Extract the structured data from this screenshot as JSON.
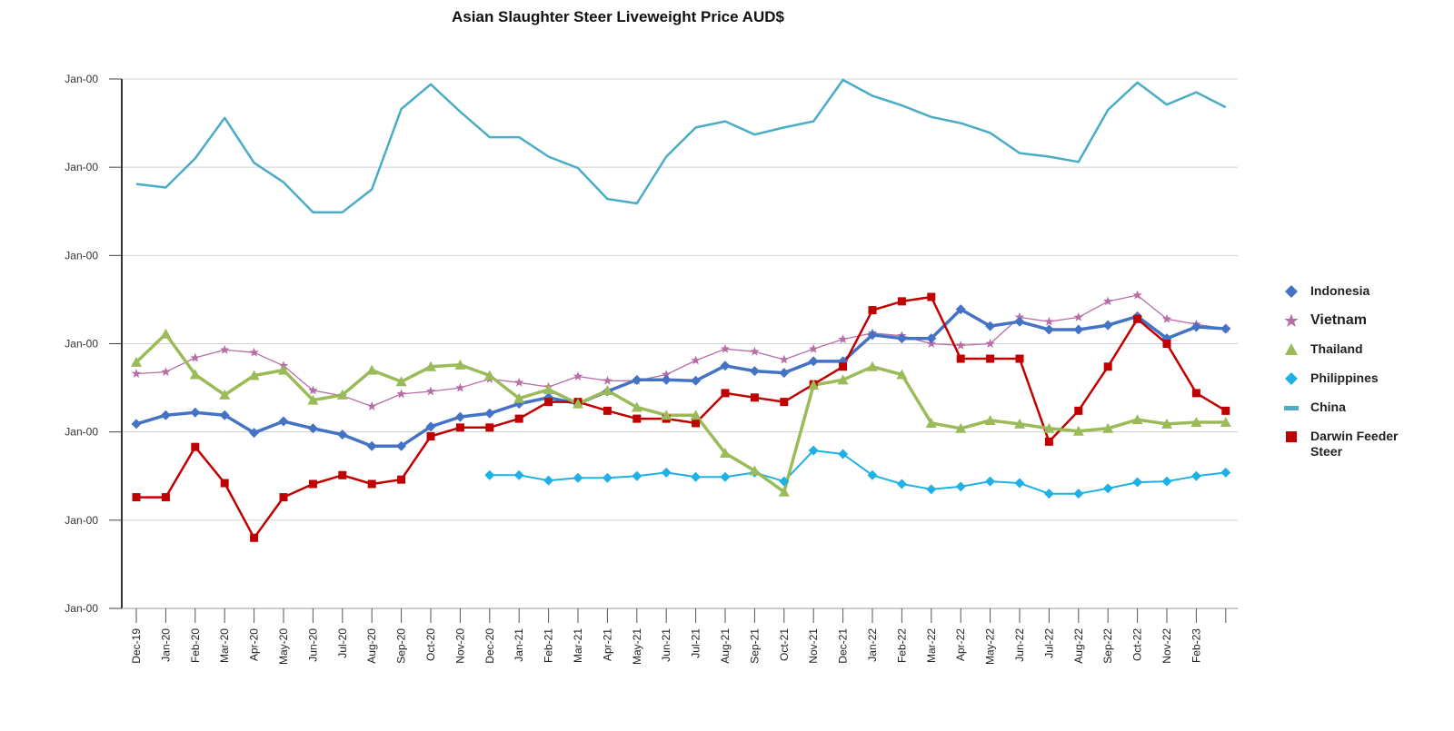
{
  "chart_data": {
    "type": "line",
    "title": "Asian Slaughter Steer Liveweight Price AUD$",
    "xlabel": "",
    "ylabel": "",
    "y_tick_labels": [
      "Jan-00",
      "Jan-00",
      "Jan-00",
      "Jan-00",
      "Jan-00",
      "Jan-00",
      "Jan-00"
    ],
    "ylim": [
      0,
      6
    ],
    "grid": "horizontal",
    "legend_position": "right",
    "categories": [
      "Dec-19",
      "Jan-20",
      "Feb-20",
      "Mar-20",
      "Apr-20",
      "May-20",
      "Jun-20",
      "Jul-20",
      "Aug-20",
      "Sep-20",
      "Oct-20",
      "Nov-20",
      "Dec-20",
      "Jan-21",
      "Feb-21",
      "Mar-21",
      "Apr-21",
      "May-21",
      "Jun-21",
      "Jul-21",
      "Aug-21",
      "Sep-21",
      "Oct-21",
      "Nov-21",
      "Dec-21",
      "Jan-22",
      "Feb-22",
      "Mar-22",
      "Apr-22",
      "May-22",
      "Jun-22",
      "Jul-22",
      "Aug-22",
      "Sep-22",
      "Oct-22",
      "Nov-22",
      "Feb-23",
      ""
    ],
    "series": [
      {
        "name": "Indonesia",
        "color": "#4472c4",
        "marker": "diamond",
        "values": [
          2.09,
          2.19,
          2.22,
          2.19,
          1.99,
          2.12,
          2.04,
          1.97,
          1.84,
          1.84,
          2.06,
          2.17,
          2.21,
          2.32,
          2.39,
          2.32,
          2.46,
          2.59,
          2.59,
          2.58,
          2.75,
          2.69,
          2.67,
          2.8,
          2.8,
          3.1,
          3.06,
          3.06,
          3.39,
          3.2,
          3.25,
          3.16,
          3.16,
          3.21,
          3.31,
          3.06,
          3.19,
          3.17
        ]
      },
      {
        "name": "Vietnam",
        "color": "#b86ea5",
        "marker": "star",
        "values": [
          2.66,
          2.68,
          2.84,
          2.93,
          2.9,
          2.75,
          2.47,
          2.41,
          2.29,
          2.43,
          2.46,
          2.5,
          2.6,
          2.56,
          2.51,
          2.63,
          2.58,
          2.58,
          2.65,
          2.81,
          2.94,
          2.91,
          2.82,
          2.94,
          3.05,
          3.12,
          3.09,
          3.0,
          2.98,
          3.0,
          3.3,
          3.25,
          3.3,
          3.48,
          3.55,
          3.28,
          3.22,
          3.17
        ]
      },
      {
        "name": "Thailand",
        "color": "#9bbb59",
        "marker": "triangle",
        "values": [
          2.79,
          3.11,
          2.65,
          2.42,
          2.64,
          2.7,
          2.36,
          2.42,
          2.7,
          2.57,
          2.74,
          2.76,
          2.64,
          2.38,
          2.48,
          2.32,
          2.47,
          2.28,
          2.19,
          2.19,
          1.76,
          1.56,
          1.32,
          2.53,
          2.59,
          2.74,
          2.65,
          2.1,
          2.04,
          2.13,
          2.09,
          2.04,
          2.01,
          2.04,
          2.14,
          2.09,
          2.11,
          2.11
        ]
      },
      {
        "name": "Philippines",
        "color": "#1fb1e6",
        "marker": "diamond",
        "values": [
          null,
          null,
          null,
          null,
          null,
          null,
          null,
          null,
          null,
          null,
          null,
          null,
          1.51,
          1.51,
          1.45,
          1.48,
          1.48,
          1.5,
          1.54,
          1.49,
          1.49,
          1.54,
          1.44,
          1.79,
          1.75,
          1.51,
          1.41,
          1.35,
          1.38,
          1.44,
          1.42,
          1.3,
          1.3,
          1.36,
          1.43,
          1.44,
          1.5,
          1.54
        ]
      },
      {
        "name": "China",
        "color": "#4bacc6",
        "marker": "dash",
        "values": [
          4.81,
          4.77,
          5.1,
          5.56,
          5.05,
          4.83,
          4.49,
          4.49,
          4.75,
          5.66,
          5.94,
          5.63,
          5.34,
          5.34,
          5.12,
          4.99,
          4.64,
          4.59,
          5.12,
          5.45,
          5.52,
          5.37,
          5.45,
          5.52,
          5.99,
          5.81,
          5.7,
          5.57,
          5.5,
          5.39,
          5.16,
          5.12,
          5.06,
          5.65,
          5.96,
          5.71,
          5.85,
          5.68
        ]
      },
      {
        "name": "Darwin Feeder Steer",
        "color": "#c00000",
        "marker": "square",
        "values": [
          1.26,
          1.26,
          1.83,
          1.42,
          0.8,
          1.26,
          1.41,
          1.51,
          1.41,
          1.46,
          1.95,
          2.05,
          2.05,
          2.15,
          2.34,
          2.34,
          2.24,
          2.15,
          2.15,
          2.1,
          2.44,
          2.39,
          2.34,
          2.54,
          2.74,
          3.38,
          3.48,
          3.53,
          2.83,
          2.83,
          2.83,
          1.89,
          2.24,
          2.74,
          3.28,
          3.0,
          2.44,
          2.24
        ]
      }
    ]
  }
}
